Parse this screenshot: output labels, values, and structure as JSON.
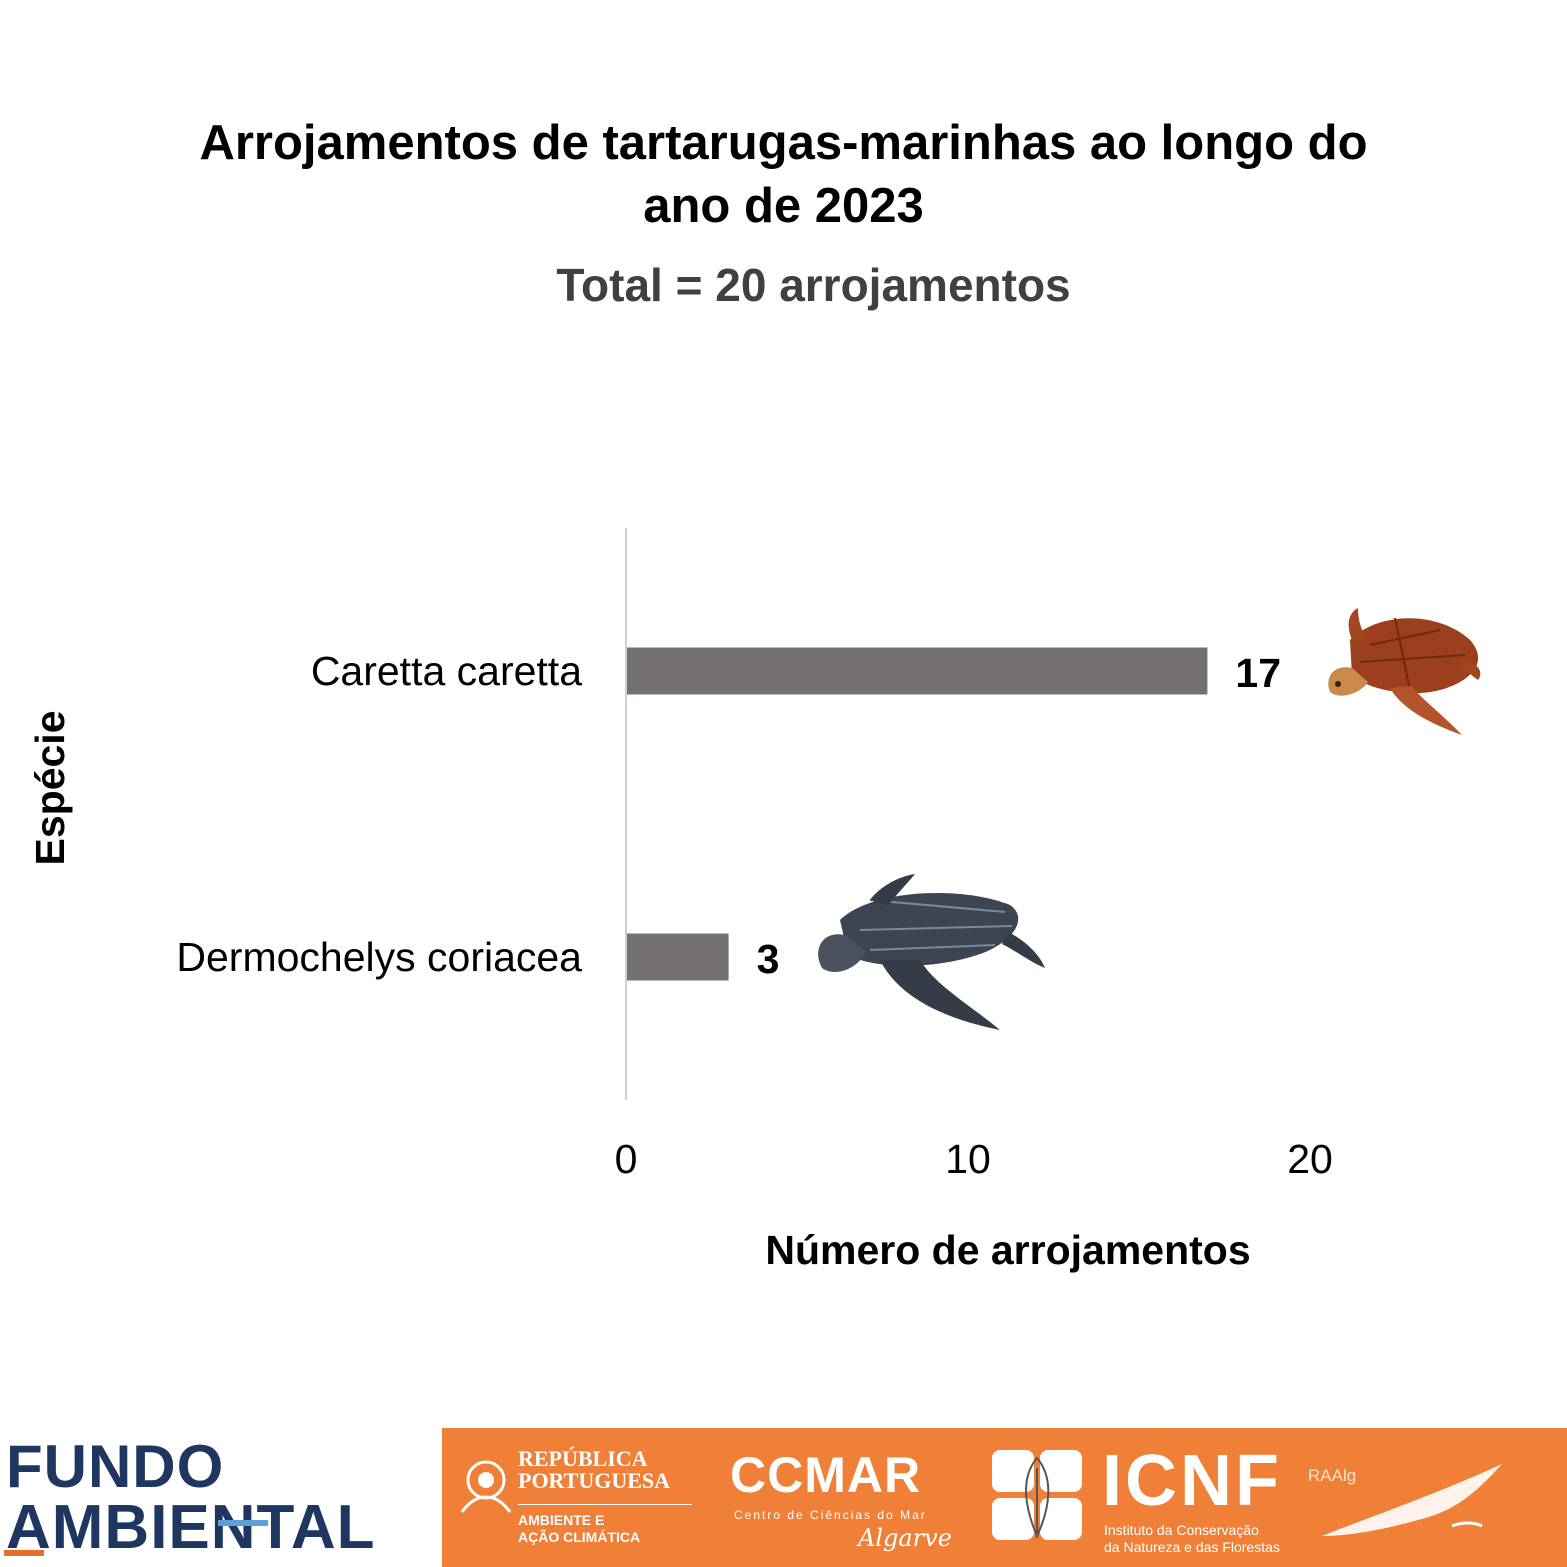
{
  "title_lines": [
    "Arrojamentos de tartarugas-marinhas ao longo do",
    "ano de 2023"
  ],
  "subtitle": "Total = 20 arrojamentos",
  "chart_data": {
    "type": "bar",
    "orientation": "horizontal",
    "categories": [
      "Caretta caretta",
      "Dermochelys coriacea"
    ],
    "values": [
      17,
      3
    ],
    "xlabel": "Número de arrojamentos",
    "ylabel": "Espécie",
    "xlim": [
      0,
      25
    ],
    "xticks": [
      0,
      10,
      20
    ],
    "bar_color": "#767171",
    "grid": false,
    "legend": "none"
  },
  "footer": {
    "fundo_line1": "FUNDO",
    "fundo_line2": "AMBIENTAL",
    "rp_line1": "REPÚBLICA",
    "rp_line2": "PORTUGUESA",
    "rp_sub1": "AMBIENTE E",
    "rp_sub2": "AÇÃO CLIMÁTICA",
    "ccmar": "CCMAR",
    "ccmar_sub": "Centro de Ciências do Mar",
    "ccmar_region": "Algarve",
    "icnf": "ICNF",
    "icnf_sub1": "Instituto da Conservação",
    "icnf_sub2": "da Natureza e das Florestas",
    "raalg": "RAAlg"
  },
  "colors": {
    "footer_orange": "#f07f38",
    "fundo_blue": "#1f3760"
  }
}
